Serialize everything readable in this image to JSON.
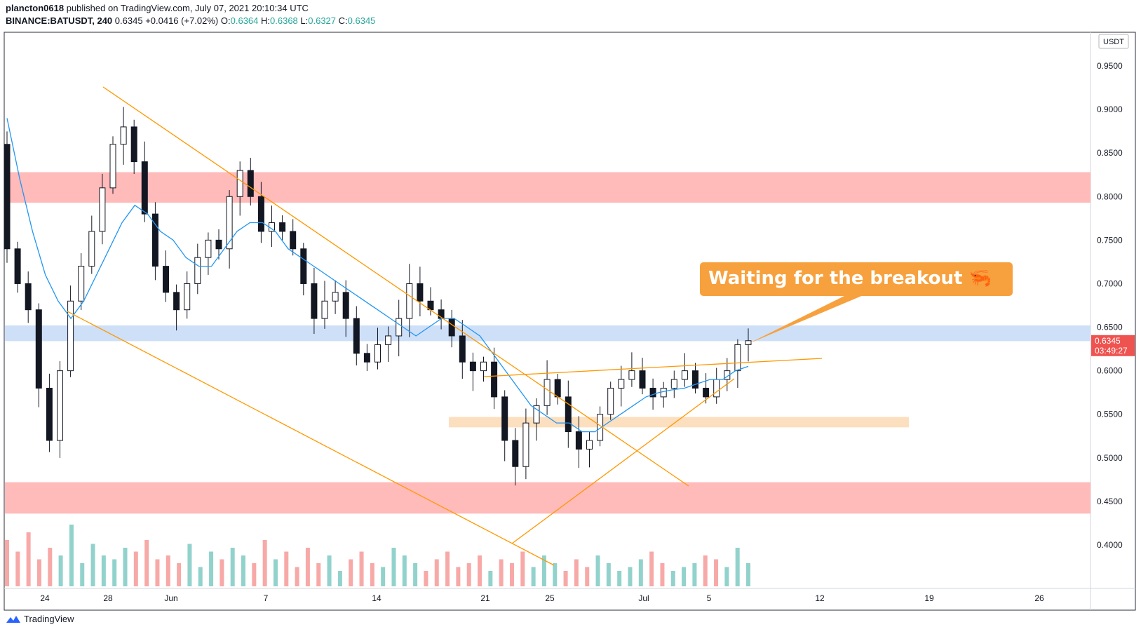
{
  "header": {
    "author": "plancton0618",
    "published_text": "published on TradingView.com, July 07, 2021 20:10:34 UTC",
    "symbol": "BINANCE:BATUSDT, 240",
    "last": "0.6345",
    "change": "+0.0416 (+7.02%)",
    "o_label": "O:",
    "o_value": "0.6364",
    "h_label": "H:",
    "h_value": "0.6368",
    "l_label": "L:",
    "l_value": "0.6327",
    "c_label": "C:",
    "c_value": "0.6345"
  },
  "footer": {
    "brand": "TradingView"
  },
  "chart_data": {
    "type": "candlestick",
    "currency_label": "USDT",
    "y_ticks": [
      "0.9500",
      "0.9000",
      "0.8500",
      "0.8000",
      "0.7500",
      "0.7000",
      "0.6500",
      "0.6000",
      "0.5500",
      "0.5000",
      "0.4500",
      "0.4000"
    ],
    "x_ticks": [
      "24",
      "28",
      "Jun",
      "7",
      "14",
      "21",
      "25",
      "Jul",
      "5",
      "12",
      "19",
      "26"
    ],
    "ylim": [
      0.375,
      1.0
    ],
    "price_badge": {
      "price": "0.6345",
      "countdown": "03:49:27",
      "value": 0.6345
    },
    "annotation": {
      "text": "Waiting for the breakout 🦐"
    },
    "zones": [
      {
        "kind": "resistance",
        "from": 0.793,
        "to": 0.828,
        "color": "#ffb3b3"
      },
      {
        "kind": "resistance-flip",
        "from": 0.634,
        "to": 0.652,
        "color": "#c9dbf7"
      },
      {
        "kind": "support",
        "from": 0.535,
        "to": 0.547,
        "color": "#fcdcb8"
      },
      {
        "kind": "support",
        "from": 0.436,
        "to": 0.472,
        "color": "#ffb3b3"
      }
    ],
    "colors": {
      "up": "#26a69a",
      "down": "#ef5350",
      "trend": "#ff9800",
      "ema": "#2196f3",
      "badge": "#ef5350",
      "callout": "#f7a13e"
    },
    "close_series_approx": [
      0.74,
      0.7,
      0.67,
      0.58,
      0.52,
      0.6,
      0.68,
      0.72,
      0.76,
      0.81,
      0.86,
      0.88,
      0.84,
      0.78,
      0.72,
      0.69,
      0.67,
      0.7,
      0.73,
      0.75,
      0.74,
      0.8,
      0.83,
      0.8,
      0.76,
      0.77,
      0.76,
      0.74,
      0.7,
      0.66,
      0.68,
      0.69,
      0.66,
      0.62,
      0.61,
      0.63,
      0.64,
      0.66,
      0.7,
      0.68,
      0.67,
      0.66,
      0.64,
      0.61,
      0.6,
      0.61,
      0.57,
      0.52,
      0.49,
      0.54,
      0.56,
      0.59,
      0.57,
      0.53,
      0.51,
      0.52,
      0.55,
      0.58,
      0.59,
      0.6,
      0.58,
      0.57,
      0.58,
      0.59,
      0.6,
      0.58,
      0.57,
      0.59,
      0.6,
      0.63,
      0.6345
    ],
    "ema_series_approx": [
      0.89,
      0.82,
      0.76,
      0.71,
      0.68,
      0.66,
      0.68,
      0.71,
      0.74,
      0.77,
      0.79,
      0.78,
      0.76,
      0.75,
      0.73,
      0.72,
      0.72,
      0.74,
      0.76,
      0.77,
      0.77,
      0.76,
      0.74,
      0.73,
      0.72,
      0.71,
      0.7,
      0.69,
      0.68,
      0.67,
      0.66,
      0.65,
      0.64,
      0.65,
      0.66,
      0.66,
      0.65,
      0.64,
      0.62,
      0.6,
      0.58,
      0.56,
      0.55,
      0.54,
      0.54,
      0.53,
      0.53,
      0.54,
      0.55,
      0.56,
      0.57,
      0.575,
      0.578,
      0.58,
      0.585,
      0.59,
      0.59,
      0.6,
      0.605
    ],
    "volume_series_approx": [
      60,
      45,
      70,
      35,
      50,
      40,
      80,
      30,
      55,
      40,
      35,
      50,
      45,
      60,
      35,
      40,
      30,
      55,
      25,
      45,
      35,
      50,
      40,
      30,
      60,
      35,
      45,
      25,
      50,
      30,
      40,
      20,
      35,
      45,
      30,
      25,
      50,
      40,
      30,
      20,
      35,
      45,
      25,
      30,
      40,
      20,
      35,
      30,
      45,
      25,
      40,
      30,
      20,
      35,
      25,
      40,
      30,
      20,
      25,
      35,
      45,
      30,
      20,
      25,
      30,
      40,
      35,
      25,
      50,
      30
    ]
  }
}
